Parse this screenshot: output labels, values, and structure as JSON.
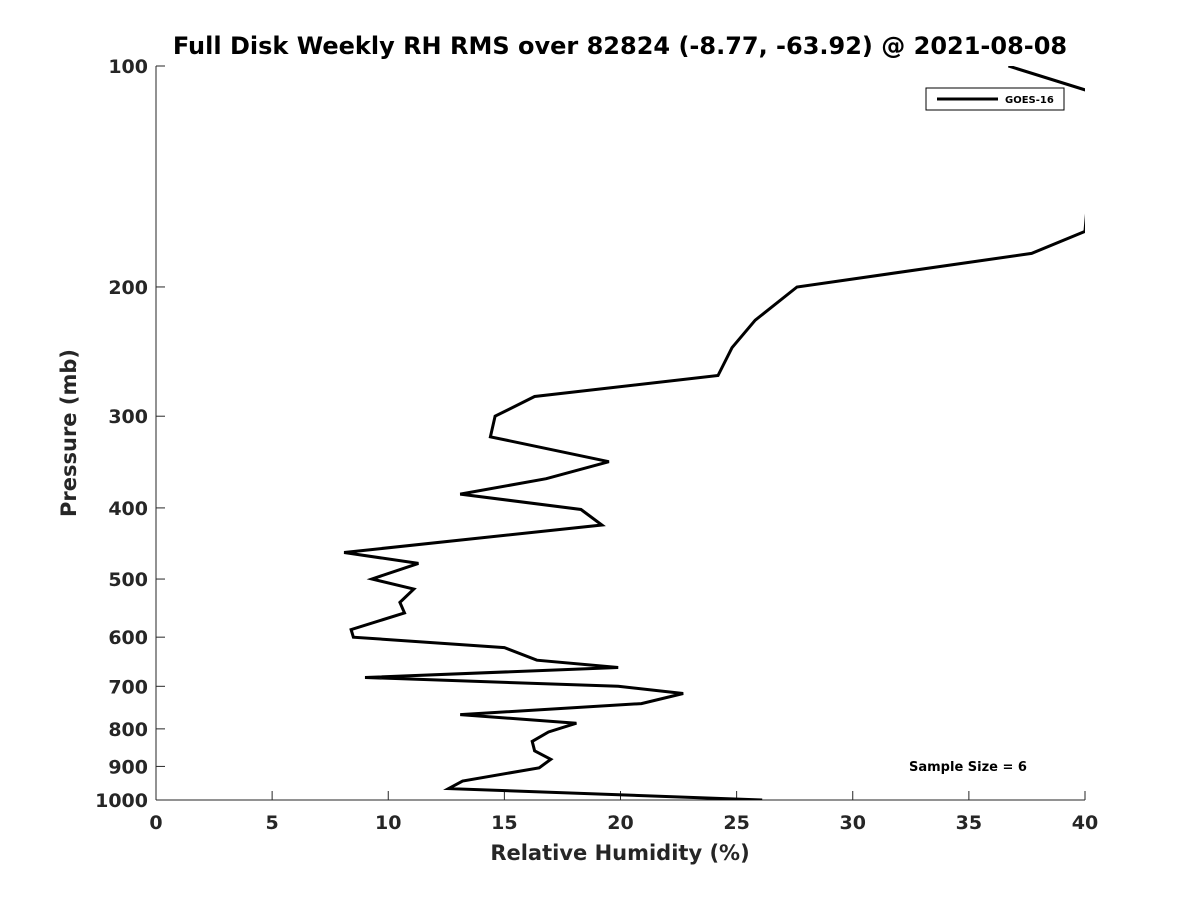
{
  "chart_data": {
    "type": "line",
    "title": "Full Disk Weekly RH RMS over 82824 (-8.77, -63.92) @ 2021-08-08",
    "xlabel": "Relative Humidity (%)",
    "ylabel": "Pressure (mb)",
    "xlim": [
      0,
      40
    ],
    "ylim": [
      100,
      1000
    ],
    "y_scale": "log",
    "y_reversed": true,
    "x_ticks": [
      0,
      5,
      10,
      15,
      20,
      25,
      30,
      35,
      40
    ],
    "y_ticks": [
      100,
      200,
      300,
      400,
      500,
      600,
      700,
      800,
      900,
      1000
    ],
    "grid": false,
    "legend_position": "top-right",
    "annotation": "Sample Size = 6",
    "series": [
      {
        "name": "GOES-16",
        "color": "#000000",
        "points": [
          [
            36.7,
            100
          ],
          [
            40.5,
            109
          ],
          [
            40.0,
            168
          ],
          [
            37.7,
            180
          ],
          [
            27.6,
            200
          ],
          [
            25.8,
            222
          ],
          [
            24.8,
            242
          ],
          [
            24.2,
            264
          ],
          [
            16.3,
            282
          ],
          [
            14.6,
            300
          ],
          [
            14.4,
            320
          ],
          [
            19.5,
            346
          ],
          [
            16.8,
            365
          ],
          [
            13.1,
            383
          ],
          [
            18.3,
            402
          ],
          [
            19.2,
            422
          ],
          [
            8.1,
            460
          ],
          [
            11.3,
            476
          ],
          [
            9.3,
            500
          ],
          [
            11.1,
            516
          ],
          [
            10.5,
            538
          ],
          [
            10.7,
            556
          ],
          [
            8.4,
            586
          ],
          [
            8.5,
            600
          ],
          [
            15.0,
            620
          ],
          [
            16.4,
            645
          ],
          [
            19.9,
            660
          ],
          [
            9.0,
            681
          ],
          [
            19.9,
            700
          ],
          [
            22.7,
            716
          ],
          [
            20.9,
            739
          ],
          [
            13.1,
            765
          ],
          [
            18.1,
            786
          ],
          [
            16.9,
            808
          ],
          [
            16.2,
            832
          ],
          [
            16.3,
            857
          ],
          [
            17.0,
            880
          ],
          [
            16.5,
            904
          ],
          [
            13.2,
            942
          ],
          [
            12.6,
            965
          ],
          [
            26.1,
            1000
          ]
        ]
      }
    ]
  }
}
